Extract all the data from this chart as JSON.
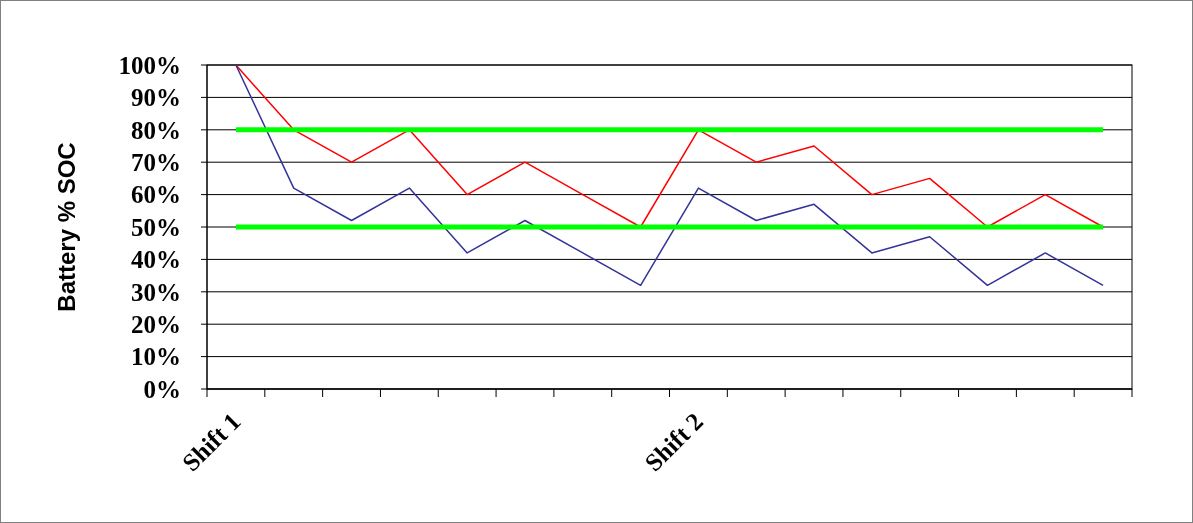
{
  "chart_data": {
    "type": "line",
    "ylabel": "Battery % SOC",
    "categories": [
      "Shift 1",
      null,
      null,
      null,
      null,
      null,
      null,
      null,
      "Shift 2",
      null,
      null,
      null,
      null,
      null,
      null,
      null
    ],
    "series": [
      {
        "color": "#ff0000",
        "values": [
          100,
          80,
          70,
          80,
          60,
          70,
          60,
          50,
          80,
          70,
          75,
          60,
          65,
          50,
          60,
          50
        ]
      },
      {
        "color": "#333399",
        "values": [
          100,
          62,
          52,
          62,
          42,
          52,
          42,
          32,
          62,
          52,
          57,
          42,
          47,
          32,
          42,
          32
        ]
      },
      {
        "color": "#00ff00",
        "values": [
          80,
          80,
          80,
          80,
          80,
          80,
          80,
          80,
          80,
          80,
          80,
          80,
          80,
          80,
          80,
          80
        ]
      },
      {
        "color": "#00ff00",
        "values": [
          50,
          50,
          50,
          50,
          50,
          50,
          50,
          50,
          50,
          50,
          50,
          50,
          50,
          50,
          50,
          50
        ]
      }
    ],
    "ylim": [
      0,
      100
    ],
    "yticks": [
      {
        "value": 0,
        "label": "0%"
      },
      {
        "value": 10,
        "label": "10%"
      },
      {
        "value": 20,
        "label": "20%"
      },
      {
        "value": 30,
        "label": "30%"
      },
      {
        "value": 40,
        "label": "40%"
      },
      {
        "value": 50,
        "label": "50%"
      },
      {
        "value": 60,
        "label": "60%"
      },
      {
        "value": 70,
        "label": "70%"
      },
      {
        "value": 80,
        "label": "80%"
      },
      {
        "value": 90,
        "label": "90%"
      },
      {
        "value": 100,
        "label": "100%"
      }
    ],
    "grid": "y",
    "marker": "none",
    "line_style": "solid"
  }
}
